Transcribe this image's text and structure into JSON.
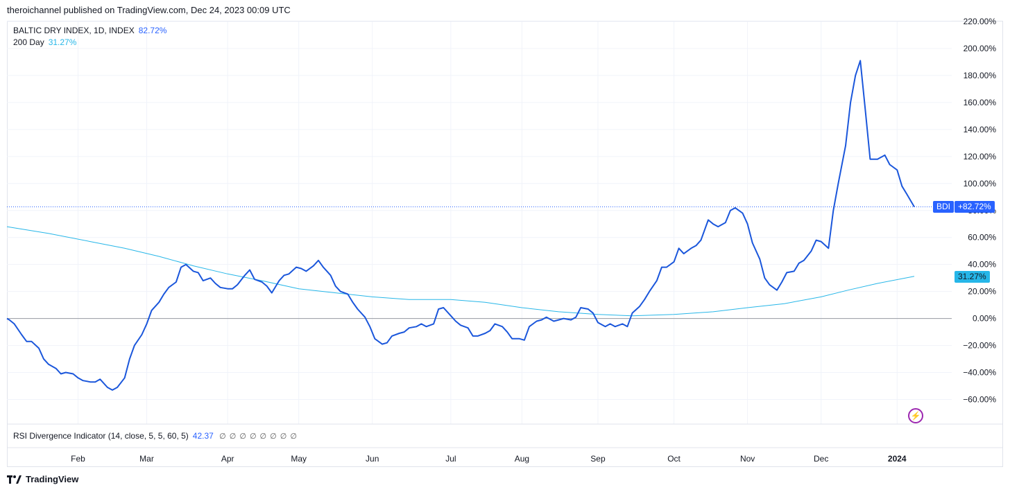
{
  "header": {
    "published_line": "theroichannel published on TradingView.com, Dec 24, 2023 00:09 UTC"
  },
  "legend": {
    "main_label": "BALTIC DRY INDEX, 1D, INDEX",
    "main_value": "82.72%",
    "ma_label": "200 Day",
    "ma_value": "31.27%"
  },
  "price_tags": {
    "symbol": "BDI",
    "main": "+82.72%",
    "ma": "31.27%"
  },
  "indicator": {
    "label": "RSI Divergence Indicator (14, close, 5, 5, 60, 5)",
    "value": "42.37",
    "empty_values": [
      "∅",
      "∅",
      "∅",
      "∅",
      "∅",
      "∅",
      "∅",
      "∅"
    ]
  },
  "footer": {
    "brand": "TradingView"
  },
  "colors": {
    "main_line": "#1a56db",
    "ma_line": "#26b6e8",
    "grid": "#f0f3fa",
    "zero_line": "#9598a1",
    "tag_blue": "#2962ff"
  },
  "icons": {
    "flash": "lightning-icon",
    "logo": "tradingview-logo-icon"
  },
  "chart_data": {
    "type": "line",
    "title": "BALTIC DRY INDEX, 1D, INDEX",
    "xlabel": "",
    "ylabel": "",
    "ylim": [
      -70,
      220
    ],
    "y_ticks": [
      220,
      200,
      180,
      160,
      140,
      120,
      100,
      80,
      60,
      40,
      20,
      0,
      -20,
      -40,
      -60
    ],
    "y_tick_labels": [
      "220.00%",
      "200.00%",
      "180.00%",
      "160.00%",
      "140.00%",
      "120.00%",
      "100.00%",
      "80.00%",
      "60.00%",
      "40.00%",
      "20.00%",
      "0.00%",
      "−20.00%",
      "−40.00%",
      "−60.00%"
    ],
    "x_range": [
      "2023-01-03",
      "2024-01-08"
    ],
    "x_ticks": [
      {
        "date": "2023-02-01",
        "label": "Feb"
      },
      {
        "date": "2023-03-01",
        "label": "Mar"
      },
      {
        "date": "2023-04-03",
        "label": "Apr"
      },
      {
        "date": "2023-05-02",
        "label": "May"
      },
      {
        "date": "2023-06-01",
        "label": "Jun"
      },
      {
        "date": "2023-07-03",
        "label": "Jul"
      },
      {
        "date": "2023-08-01",
        "label": "Aug"
      },
      {
        "date": "2023-09-01",
        "label": "Sep"
      },
      {
        "date": "2023-10-02",
        "label": "Oct"
      },
      {
        "date": "2023-11-01",
        "label": "Nov"
      },
      {
        "date": "2023-12-01",
        "label": "Dec"
      },
      {
        "date": "2024-01-01",
        "label": "2024"
      }
    ],
    "grid": true,
    "series": [
      {
        "name": "BALTIC DRY INDEX, 1D, INDEX",
        "points": [
          [
            "2023-01-03",
            0
          ],
          [
            "2023-01-04",
            -1
          ],
          [
            "2023-01-06",
            -4
          ],
          [
            "2023-01-09",
            -12
          ],
          [
            "2023-01-11",
            -17
          ],
          [
            "2023-01-13",
            -17
          ],
          [
            "2023-01-16",
            -22
          ],
          [
            "2023-01-18",
            -30
          ],
          [
            "2023-01-20",
            -34
          ],
          [
            "2023-01-23",
            -37
          ],
          [
            "2023-01-25",
            -41
          ],
          [
            "2023-01-27",
            -40
          ],
          [
            "2023-01-30",
            -41
          ],
          [
            "2023-02-01",
            -44
          ],
          [
            "2023-02-03",
            -46
          ],
          [
            "2023-02-06",
            -47
          ],
          [
            "2023-02-08",
            -47
          ],
          [
            "2023-02-10",
            -45
          ],
          [
            "2023-02-13",
            -51
          ],
          [
            "2023-02-15",
            -53
          ],
          [
            "2023-02-17",
            -51
          ],
          [
            "2023-02-20",
            -44
          ],
          [
            "2023-02-22",
            -30
          ],
          [
            "2023-02-24",
            -20
          ],
          [
            "2023-02-27",
            -12
          ],
          [
            "2023-03-01",
            -4
          ],
          [
            "2023-03-03",
            6
          ],
          [
            "2023-03-06",
            12
          ],
          [
            "2023-03-08",
            18
          ],
          [
            "2023-03-10",
            23
          ],
          [
            "2023-03-13",
            27
          ],
          [
            "2023-03-15",
            38
          ],
          [
            "2023-03-17",
            40
          ],
          [
            "2023-03-20",
            35
          ],
          [
            "2023-03-22",
            34
          ],
          [
            "2023-03-24",
            28
          ],
          [
            "2023-03-27",
            30
          ],
          [
            "2023-03-29",
            26
          ],
          [
            "2023-03-31",
            23
          ],
          [
            "2023-04-03",
            22
          ],
          [
            "2023-04-05",
            22
          ],
          [
            "2023-04-07",
            25
          ],
          [
            "2023-04-10",
            32
          ],
          [
            "2023-04-12",
            36
          ],
          [
            "2023-04-14",
            29
          ],
          [
            "2023-04-17",
            27
          ],
          [
            "2023-04-19",
            24
          ],
          [
            "2023-04-21",
            19
          ],
          [
            "2023-04-24",
            28
          ],
          [
            "2023-04-26",
            32
          ],
          [
            "2023-04-28",
            33
          ],
          [
            "2023-05-01",
            38
          ],
          [
            "2023-05-03",
            37
          ],
          [
            "2023-05-05",
            35
          ],
          [
            "2023-05-08",
            39
          ],
          [
            "2023-05-10",
            43
          ],
          [
            "2023-05-12",
            38
          ],
          [
            "2023-05-15",
            32
          ],
          [
            "2023-05-17",
            24
          ],
          [
            "2023-05-19",
            20
          ],
          [
            "2023-05-22",
            18
          ],
          [
            "2023-05-24",
            12
          ],
          [
            "2023-05-26",
            7
          ],
          [
            "2023-05-29",
            1
          ],
          [
            "2023-05-31",
            -6
          ],
          [
            "2023-06-02",
            -15
          ],
          [
            "2023-06-05",
            -19
          ],
          [
            "2023-06-07",
            -18
          ],
          [
            "2023-06-09",
            -13
          ],
          [
            "2023-06-12",
            -11
          ],
          [
            "2023-06-14",
            -10
          ],
          [
            "2023-06-16",
            -7
          ],
          [
            "2023-06-19",
            -6
          ],
          [
            "2023-06-21",
            -4
          ],
          [
            "2023-06-23",
            -6
          ],
          [
            "2023-06-26",
            -4
          ],
          [
            "2023-06-28",
            7
          ],
          [
            "2023-06-30",
            8
          ],
          [
            "2023-07-03",
            2
          ],
          [
            "2023-07-05",
            -2
          ],
          [
            "2023-07-07",
            -5
          ],
          [
            "2023-07-10",
            -7
          ],
          [
            "2023-07-12",
            -13
          ],
          [
            "2023-07-14",
            -13
          ],
          [
            "2023-07-17",
            -11
          ],
          [
            "2023-07-19",
            -9
          ],
          [
            "2023-07-21",
            -4
          ],
          [
            "2023-07-24",
            -6
          ],
          [
            "2023-07-26",
            -10
          ],
          [
            "2023-07-28",
            -15
          ],
          [
            "2023-07-31",
            -15
          ],
          [
            "2023-08-02",
            -16
          ],
          [
            "2023-08-04",
            -6
          ],
          [
            "2023-08-07",
            -2
          ],
          [
            "2023-08-09",
            -1
          ],
          [
            "2023-08-11",
            1
          ],
          [
            "2023-08-14",
            -2
          ],
          [
            "2023-08-16",
            -1
          ],
          [
            "2023-08-18",
            0
          ],
          [
            "2023-08-21",
            -1
          ],
          [
            "2023-08-23",
            1
          ],
          [
            "2023-08-25",
            8
          ],
          [
            "2023-08-28",
            7
          ],
          [
            "2023-08-30",
            4
          ],
          [
            "2023-09-01",
            -3
          ],
          [
            "2023-09-04",
            -6
          ],
          [
            "2023-09-06",
            -4
          ],
          [
            "2023-09-08",
            -6
          ],
          [
            "2023-09-11",
            -4
          ],
          [
            "2023-09-13",
            -6
          ],
          [
            "2023-09-15",
            4
          ],
          [
            "2023-09-18",
            9
          ],
          [
            "2023-09-20",
            14
          ],
          [
            "2023-09-22",
            20
          ],
          [
            "2023-09-25",
            28
          ],
          [
            "2023-09-27",
            38
          ],
          [
            "2023-09-29",
            38
          ],
          [
            "2023-10-02",
            42
          ],
          [
            "2023-10-04",
            52
          ],
          [
            "2023-10-06",
            48
          ],
          [
            "2023-10-09",
            52
          ],
          [
            "2023-10-11",
            54
          ],
          [
            "2023-10-13",
            58
          ],
          [
            "2023-10-16",
            73
          ],
          [
            "2023-10-18",
            70
          ],
          [
            "2023-10-20",
            68
          ],
          [
            "2023-10-23",
            71
          ],
          [
            "2023-10-25",
            80
          ],
          [
            "2023-10-27",
            82
          ],
          [
            "2023-10-30",
            78
          ],
          [
            "2023-11-01",
            70
          ],
          [
            "2023-11-03",
            56
          ],
          [
            "2023-11-06",
            44
          ],
          [
            "2023-11-08",
            30
          ],
          [
            "2023-11-10",
            25
          ],
          [
            "2023-11-13",
            21
          ],
          [
            "2023-11-15",
            27
          ],
          [
            "2023-11-17",
            34
          ],
          [
            "2023-11-20",
            35
          ],
          [
            "2023-11-22",
            41
          ],
          [
            "2023-11-24",
            43
          ],
          [
            "2023-11-27",
            50
          ],
          [
            "2023-11-29",
            58
          ],
          [
            "2023-12-01",
            57
          ],
          [
            "2023-12-04",
            52
          ],
          [
            "2023-12-06",
            80
          ],
          [
            "2023-12-08",
            100
          ],
          [
            "2023-12-11",
            128
          ],
          [
            "2023-12-13",
            160
          ],
          [
            "2023-12-15",
            180
          ],
          [
            "2023-12-17",
            191
          ],
          [
            "2023-12-19",
            155
          ],
          [
            "2023-12-21",
            118
          ],
          [
            "2023-12-24",
            118
          ],
          [
            "2023-12-27",
            121
          ],
          [
            "2023-12-29",
            114
          ],
          [
            "2024-01-01",
            110
          ],
          [
            "2024-01-03",
            98
          ],
          [
            "2024-01-05",
            92
          ],
          [
            "2024-01-08",
            82.72
          ]
        ]
      },
      {
        "name": "200 Day",
        "points": [
          [
            "2023-01-03",
            68
          ],
          [
            "2023-01-20",
            63
          ],
          [
            "2023-02-06",
            57
          ],
          [
            "2023-02-20",
            52
          ],
          [
            "2023-03-06",
            46
          ],
          [
            "2023-03-20",
            39
          ],
          [
            "2023-04-03",
            33
          ],
          [
            "2023-04-17",
            28
          ],
          [
            "2023-05-02",
            22
          ],
          [
            "2023-05-17",
            19
          ],
          [
            "2023-06-01",
            16
          ],
          [
            "2023-06-16",
            14
          ],
          [
            "2023-07-03",
            14
          ],
          [
            "2023-07-17",
            12
          ],
          [
            "2023-08-01",
            8
          ],
          [
            "2023-08-16",
            5
          ],
          [
            "2023-09-01",
            3
          ],
          [
            "2023-09-15",
            2
          ],
          [
            "2023-10-02",
            3
          ],
          [
            "2023-10-18",
            5
          ],
          [
            "2023-11-01",
            8
          ],
          [
            "2023-11-16",
            11
          ],
          [
            "2023-12-01",
            16
          ],
          [
            "2023-12-12",
            21
          ],
          [
            "2023-12-24",
            26
          ],
          [
            "2024-01-08",
            31.27
          ]
        ]
      }
    ]
  }
}
